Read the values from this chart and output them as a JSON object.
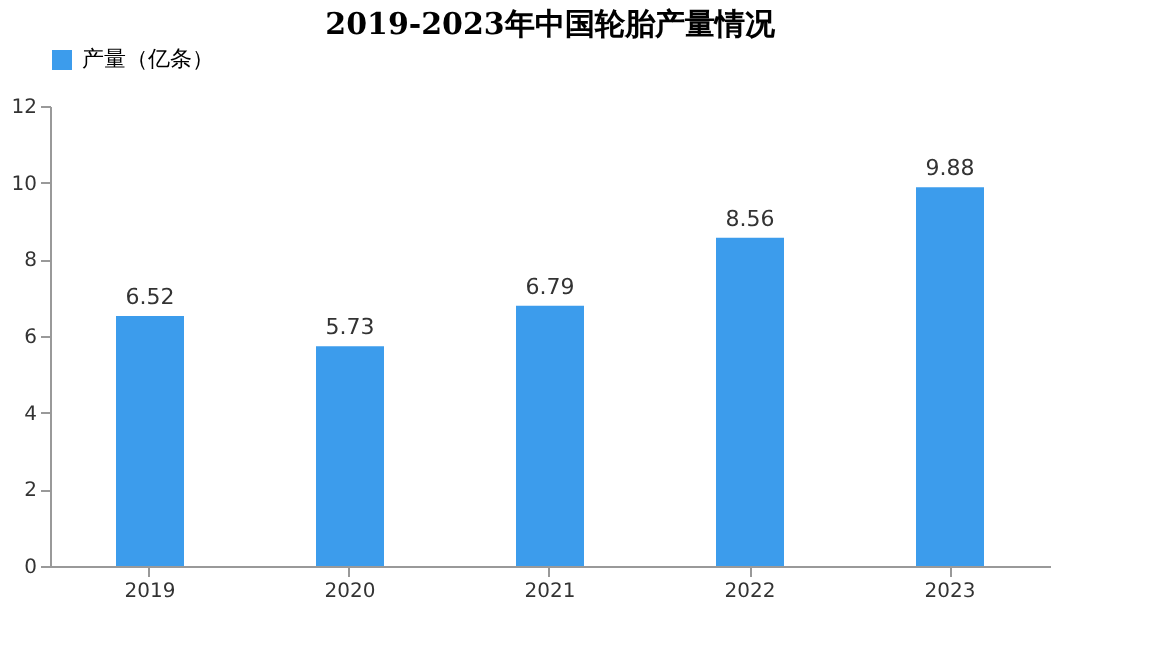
{
  "chart_data": {
    "type": "bar",
    "title": "2019-2023年中国轮胎产量情况",
    "categories": [
      "2019",
      "2020",
      "2021",
      "2022",
      "2023"
    ],
    "series": [
      {
        "name": "产量（亿条）",
        "color": "#3c9cec",
        "values": [
          6.52,
          5.73,
          6.79,
          8.56,
          9.88
        ]
      }
    ],
    "ylim": [
      0,
      12
    ],
    "yticks": [
      0,
      2,
      4,
      6,
      8,
      10,
      12
    ],
    "grid": false,
    "legend": "top",
    "data_labels": true
  }
}
